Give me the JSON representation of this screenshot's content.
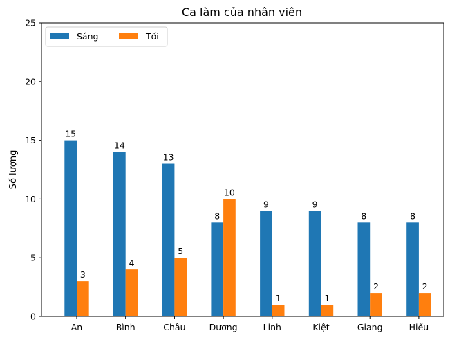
{
  "chart_data": {
    "type": "bar",
    "title": "Ca làm của nhân viên",
    "xlabel": "",
    "ylabel": "Số lượng",
    "categories": [
      "An",
      "Bình",
      "Châu",
      "Dương",
      "Linh",
      "Kiệt",
      "Giang",
      "Hiếu"
    ],
    "series": [
      {
        "name": "Sáng",
        "values": [
          15,
          14,
          13,
          8,
          9,
          9,
          8,
          8
        ],
        "color": "#1f77b4"
      },
      {
        "name": "Tối",
        "values": [
          3,
          4,
          5,
          10,
          1,
          1,
          2,
          2
        ],
        "color": "#ff7f0e"
      }
    ],
    "ylim": [
      0,
      25
    ],
    "yticks": [
      0,
      5,
      10,
      15,
      20,
      25
    ],
    "grid": false,
    "legend": "upper-left",
    "data_labels": true
  }
}
